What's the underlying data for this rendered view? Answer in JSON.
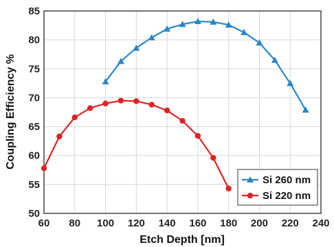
{
  "chart_data": {
    "type": "line",
    "title": "",
    "xlabel": "Etch Depth [nm]",
    "ylabel": "Coupling Efficiency %",
    "xlim": [
      60,
      240
    ],
    "ylim": [
      50,
      85
    ],
    "xticks": [
      60,
      80,
      100,
      120,
      140,
      160,
      180,
      200,
      220,
      240
    ],
    "yticks": [
      50,
      55,
      60,
      65,
      70,
      75,
      80,
      85
    ],
    "grid": true,
    "legend_position": "bottom-right",
    "series": [
      {
        "name": "Si 260 nm",
        "color": "#2a86c8",
        "marker": "triangle",
        "x": [
          100,
          110,
          120,
          130,
          140,
          150,
          160,
          170,
          180,
          190,
          200,
          210,
          220,
          230
        ],
        "y": [
          72.8,
          76.3,
          78.6,
          80.4,
          81.9,
          82.7,
          83.2,
          83.1,
          82.6,
          81.3,
          79.5,
          76.5,
          72.5,
          67.9
        ]
      },
      {
        "name": "Si 220 nm",
        "color": "#e02323",
        "marker": "circle",
        "x": [
          60,
          70,
          80,
          90,
          100,
          110,
          120,
          130,
          140,
          150,
          160,
          170,
          180
        ],
        "y": [
          57.8,
          63.3,
          66.6,
          68.2,
          69.0,
          69.5,
          69.4,
          68.8,
          67.8,
          66.0,
          63.4,
          59.6,
          54.3
        ]
      }
    ]
  }
}
